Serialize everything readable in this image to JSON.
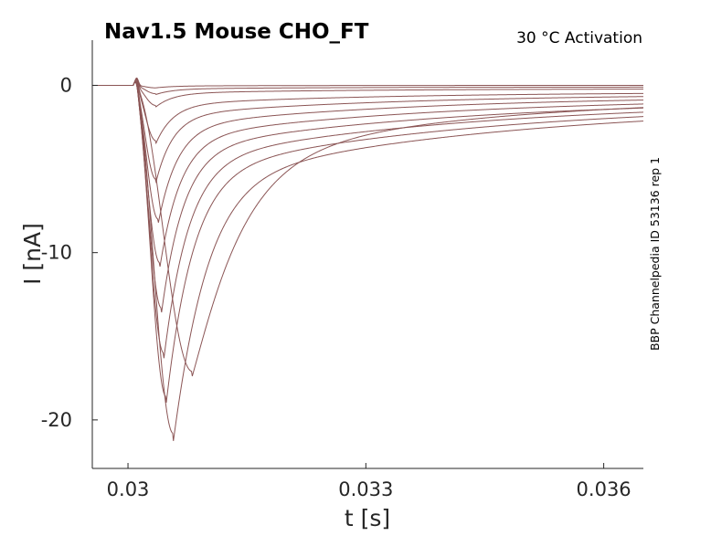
{
  "chart_data": {
    "type": "line",
    "title": "Nav1.5  Mouse  CHO_FT",
    "subtitle": "30 °C  Activation",
    "side_label": "BBP Channelpedia ID 53136 rep 1",
    "xlabel": "t [s]",
    "ylabel": "I [nA]",
    "xlim": [
      0.02955,
      0.0365
    ],
    "ylim": [
      -22.9,
      2.7
    ],
    "xticks": [
      0.03,
      0.033,
      0.036
    ],
    "xtick_labels": [
      "0.03",
      "0.033",
      "0.036"
    ],
    "yticks": [
      0,
      -10,
      -20
    ],
    "ytick_labels": [
      "0",
      "-10",
      "-20"
    ],
    "grid": false,
    "line_color": "#8b5555",
    "step_onset": 0.03007,
    "series": [
      {
        "peak_time": 0.03035,
        "peak_value": -0.15,
        "tail_value": 0.0,
        "tail_tau": 0.002
      },
      {
        "peak_time": 0.03035,
        "peak_value": -0.5,
        "tail_value": -0.05,
        "tail_tau": 0.0022
      },
      {
        "peak_time": 0.03035,
        "peak_value": -1.2,
        "tail_value": -0.1,
        "tail_tau": 0.0025
      },
      {
        "peak_time": 0.03035,
        "peak_value": -3.3,
        "tail_value": -0.2,
        "tail_tau": 0.0028
      },
      {
        "peak_time": 0.03035,
        "peak_value": -5.6,
        "tail_value": -0.25,
        "tail_tau": 0.003
      },
      {
        "peak_time": 0.03038,
        "peak_value": -8.0,
        "tail_value": -0.3,
        "tail_tau": 0.0032
      },
      {
        "peak_time": 0.0304,
        "peak_value": -10.6,
        "tail_value": -0.35,
        "tail_tau": 0.0034
      },
      {
        "peak_time": 0.03042,
        "peak_value": -13.3,
        "tail_value": -0.4,
        "tail_tau": 0.0035
      },
      {
        "peak_time": 0.03045,
        "peak_value": -16.0,
        "tail_value": -0.45,
        "tail_tau": 0.0036
      },
      {
        "peak_time": 0.03048,
        "peak_value": -18.6,
        "tail_value": -0.5,
        "tail_tau": 0.0037
      },
      {
        "peak_time": 0.03057,
        "peak_value": -20.8,
        "tail_value": -0.55,
        "tail_tau": 0.0038
      },
      {
        "peak_time": 0.03081,
        "peak_value": -17.1,
        "tail_value": -0.3,
        "tail_tau": 0.0033
      }
    ]
  }
}
